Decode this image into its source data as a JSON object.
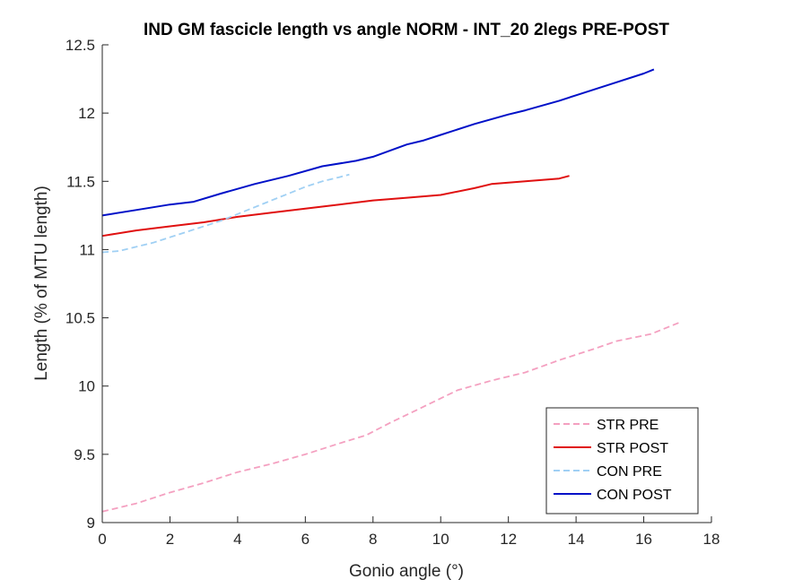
{
  "chart_data": {
    "type": "line",
    "title": "IND GM fascicle length vs angle NORM - INT_20 2legs PRE-POST",
    "xlabel": "Gonio angle (°)",
    "ylabel": "Length (% of MTU length)",
    "xlim": [
      0,
      18
    ],
    "ylim": [
      9,
      12.5
    ],
    "xticks": [
      0,
      2,
      4,
      6,
      8,
      10,
      12,
      14,
      16,
      18
    ],
    "yticks": [
      9,
      9.5,
      10,
      10.5,
      11,
      11.5,
      12,
      12.5
    ],
    "xtick_labels": [
      "0",
      "2",
      "4",
      "6",
      "8",
      "10",
      "12",
      "14",
      "16",
      "18"
    ],
    "ytick_labels": [
      "9",
      "9.5",
      "10",
      "10.5",
      "11",
      "11.5",
      "12",
      "12.5"
    ],
    "grid": false,
    "legend_position": "bottom-right",
    "series": [
      {
        "name": "STR PRE",
        "color": "#f4a0c0",
        "dash": true,
        "x": [
          0,
          1,
          2,
          3,
          4,
          5,
          6,
          7,
          7.8,
          8.5,
          9.5,
          10.5,
          11.5,
          12.5,
          13.5,
          14.5,
          15.2,
          16.2,
          17.1
        ],
        "y": [
          9.08,
          9.14,
          9.22,
          9.29,
          9.37,
          9.43,
          9.5,
          9.58,
          9.64,
          9.73,
          9.85,
          9.97,
          10.04,
          10.1,
          10.19,
          10.27,
          10.33,
          10.38,
          10.47
        ]
      },
      {
        "name": "STR POST",
        "color": "#e01010",
        "dash": false,
        "x": [
          0,
          1,
          2,
          3,
          4,
          5,
          6,
          7,
          8,
          9,
          10,
          11,
          11.5,
          12.5,
          13.5,
          13.8
        ],
        "y": [
          11.1,
          11.14,
          11.17,
          11.2,
          11.24,
          11.27,
          11.3,
          11.33,
          11.36,
          11.38,
          11.4,
          11.45,
          11.48,
          11.5,
          11.52,
          11.54
        ]
      },
      {
        "name": "CON PRE",
        "color": "#a0d0f4",
        "dash": true,
        "x": [
          0,
          0.5,
          1,
          1.5,
          2,
          2.5,
          3,
          3.5,
          4,
          4.5,
          5,
          5.5,
          6,
          6.5,
          7,
          7.3
        ],
        "y": [
          10.98,
          10.99,
          11.02,
          11.05,
          11.09,
          11.13,
          11.17,
          11.21,
          11.26,
          11.31,
          11.36,
          11.41,
          11.46,
          11.5,
          11.53,
          11.55
        ]
      },
      {
        "name": "CON POST",
        "color": "#0010c8",
        "dash": false,
        "x": [
          0,
          1,
          2,
          2.7,
          3.5,
          4.5,
          5.5,
          6.5,
          7.5,
          8,
          9,
          9.5,
          10,
          11,
          12,
          12.5,
          13.5,
          14,
          15,
          16,
          16.3
        ],
        "y": [
          11.25,
          11.29,
          11.33,
          11.35,
          11.41,
          11.48,
          11.54,
          11.61,
          11.65,
          11.68,
          11.77,
          11.8,
          11.84,
          11.92,
          11.99,
          12.02,
          12.09,
          12.13,
          12.21,
          12.29,
          12.32
        ]
      }
    ]
  }
}
